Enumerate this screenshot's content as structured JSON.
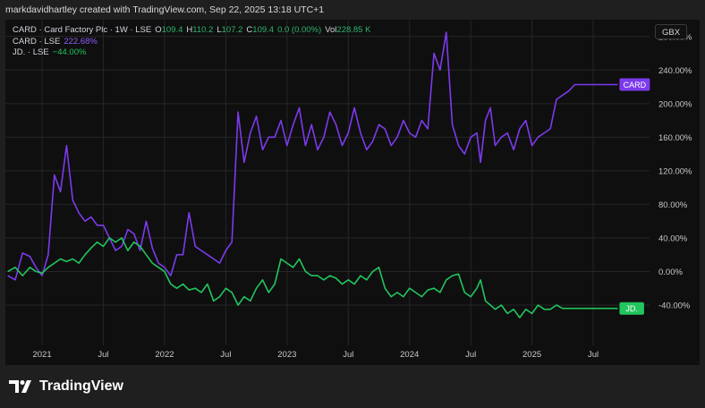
{
  "header": {
    "caption": "markdavidhartley created with TradingView.com, Sep 22, 2025 13:18 UTC+1"
  },
  "legend": {
    "main_prefix": "CARD · Card Factory Plc · 1W · LSE",
    "ohlc": [
      {
        "label": "O",
        "value": "109.4"
      },
      {
        "label": "H",
        "value": "110.2"
      },
      {
        "label": "L",
        "value": "107.2"
      },
      {
        "label": "C",
        "value": "109.4"
      }
    ],
    "change": "0.0 (0.00%)",
    "vol_label": "Vol",
    "vol_value": "228.85 K",
    "card_label": "CARD · LSE",
    "card_value": "222.68%",
    "jd_label": "JD. · LSE",
    "jd_value": "−44.00%"
  },
  "currency_button": "GBX",
  "footer": {
    "brand": "TradingView"
  },
  "chart_data": {
    "type": "line",
    "y_tick_labels": [
      "280.00%",
      "240.00%",
      "200.00%",
      "160.00%",
      "120.00%",
      "80.00%",
      "40.00%",
      "0.00%",
      "-40.00%"
    ],
    "y_tick_values": [
      280,
      240,
      200,
      160,
      120,
      80,
      40,
      0,
      -40
    ],
    "ylim": [
      -88,
      300
    ],
    "x_tick_labels": [
      "2021",
      "Jul",
      "2022",
      "Jul",
      "2023",
      "Jul",
      "2024",
      "Jul",
      "2025",
      "Jul"
    ],
    "x_tick_values": [
      2021.0,
      2021.5,
      2022.0,
      2022.5,
      2023.0,
      2023.5,
      2024.0,
      2024.5,
      2025.0,
      2025.5
    ],
    "xlim": [
      2020.7,
      2025.96
    ],
    "colors": {
      "card": "#7c3aed",
      "jd": "#22c55e",
      "up": "#2db36b"
    },
    "series": [
      {
        "name": "CARD",
        "end_label": "CARD",
        "x": [
          2020.72,
          2020.78,
          2020.84,
          2020.9,
          2020.95,
          2021.0,
          2021.05,
          2021.1,
          2021.15,
          2021.2,
          2021.25,
          2021.3,
          2021.35,
          2021.4,
          2021.45,
          2021.5,
          2021.55,
          2021.6,
          2021.65,
          2021.7,
          2021.75,
          2021.8,
          2021.85,
          2021.9,
          2021.95,
          2022.0,
          2022.05,
          2022.1,
          2022.15,
          2022.2,
          2022.25,
          2022.3,
          2022.35,
          2022.4,
          2022.45,
          2022.5,
          2022.55,
          2022.6,
          2022.65,
          2022.7,
          2022.75,
          2022.8,
          2022.85,
          2022.9,
          2022.95,
          2023.0,
          2023.05,
          2023.1,
          2023.15,
          2023.2,
          2023.25,
          2023.3,
          2023.35,
          2023.4,
          2023.45,
          2023.5,
          2023.55,
          2023.6,
          2023.65,
          2023.7,
          2023.75,
          2023.8,
          2023.85,
          2023.9,
          2023.95,
          2024.0,
          2024.05,
          2024.1,
          2024.15,
          2024.2,
          2024.25,
          2024.3,
          2024.35,
          2024.4,
          2024.45,
          2024.5,
          2024.55,
          2024.58,
          2024.62,
          2024.66,
          2024.7,
          2024.75,
          2024.8,
          2024.85,
          2024.9,
          2024.95,
          2025.0,
          2025.05,
          2025.1,
          2025.15,
          2025.2,
          2025.25,
          2025.3,
          2025.35,
          2025.4,
          2025.45,
          2025.5,
          2025.55,
          2025.6,
          2025.65,
          2025.7
        ],
        "values": [
          -5,
          -10,
          22,
          18,
          5,
          -5,
          20,
          115,
          95,
          150,
          85,
          70,
          60,
          65,
          55,
          55,
          40,
          25,
          30,
          50,
          45,
          25,
          60,
          28,
          10,
          5,
          -5,
          20,
          20,
          70,
          30,
          25,
          20,
          15,
          10,
          25,
          35,
          190,
          130,
          165,
          185,
          145,
          160,
          160,
          180,
          150,
          175,
          195,
          150,
          175,
          145,
          160,
          190,
          175,
          150,
          165,
          195,
          165,
          145,
          155,
          175,
          170,
          150,
          160,
          180,
          165,
          160,
          180,
          170,
          260,
          240,
          285,
          175,
          150,
          140,
          160,
          165,
          130,
          180,
          195,
          150,
          160,
          165,
          145,
          170,
          180,
          150,
          160,
          165,
          170,
          205,
          210,
          215,
          222.68,
          222.68,
          222.68,
          222.68,
          222.68,
          222.68,
          222.68,
          222.68
        ]
      },
      {
        "name": "JD.",
        "end_label": "JD.",
        "x": [
          2020.72,
          2020.78,
          2020.84,
          2020.9,
          2020.95,
          2021.0,
          2021.05,
          2021.1,
          2021.15,
          2021.2,
          2021.25,
          2021.3,
          2021.35,
          2021.4,
          2021.45,
          2021.5,
          2021.55,
          2021.6,
          2021.65,
          2021.7,
          2021.75,
          2021.8,
          2021.85,
          2021.9,
          2021.95,
          2022.0,
          2022.05,
          2022.1,
          2022.15,
          2022.2,
          2022.25,
          2022.3,
          2022.35,
          2022.4,
          2022.45,
          2022.5,
          2022.55,
          2022.6,
          2022.65,
          2022.7,
          2022.75,
          2022.8,
          2022.85,
          2022.9,
          2022.95,
          2023.0,
          2023.05,
          2023.1,
          2023.15,
          2023.2,
          2023.25,
          2023.3,
          2023.35,
          2023.4,
          2023.45,
          2023.5,
          2023.55,
          2023.6,
          2023.65,
          2023.7,
          2023.75,
          2023.8,
          2023.85,
          2023.9,
          2023.95,
          2024.0,
          2024.05,
          2024.1,
          2024.15,
          2024.2,
          2024.25,
          2024.3,
          2024.35,
          2024.4,
          2024.45,
          2024.5,
          2024.55,
          2024.58,
          2024.62,
          2024.66,
          2024.7,
          2024.75,
          2024.8,
          2024.85,
          2024.9,
          2024.95,
          2025.0,
          2025.05,
          2025.1,
          2025.15,
          2025.2,
          2025.25,
          2025.3,
          2025.35,
          2025.4,
          2025.45,
          2025.5,
          2025.55,
          2025.6,
          2025.65,
          2025.7
        ],
        "values": [
          0,
          5,
          -5,
          5,
          0,
          -2,
          5,
          10,
          15,
          12,
          15,
          10,
          20,
          28,
          35,
          30,
          40,
          35,
          40,
          25,
          35,
          30,
          20,
          10,
          5,
          0,
          -15,
          -20,
          -15,
          -22,
          -20,
          -25,
          -15,
          -35,
          -30,
          -20,
          -25,
          -40,
          -30,
          -35,
          -20,
          -10,
          -25,
          -15,
          15,
          10,
          5,
          15,
          0,
          -5,
          -5,
          -10,
          -5,
          -8,
          -15,
          -10,
          -15,
          -5,
          -10,
          0,
          5,
          -20,
          -30,
          -25,
          -30,
          -20,
          -25,
          -30,
          -22,
          -20,
          -25,
          -10,
          -5,
          -3,
          -25,
          -30,
          -20,
          -10,
          -35,
          -40,
          -45,
          -40,
          -50,
          -45,
          -55,
          -45,
          -50,
          -40,
          -45,
          -45,
          -40,
          -44,
          -44,
          -44,
          -44,
          -44,
          -44,
          -44,
          -44,
          -44,
          -44
        ]
      }
    ]
  }
}
